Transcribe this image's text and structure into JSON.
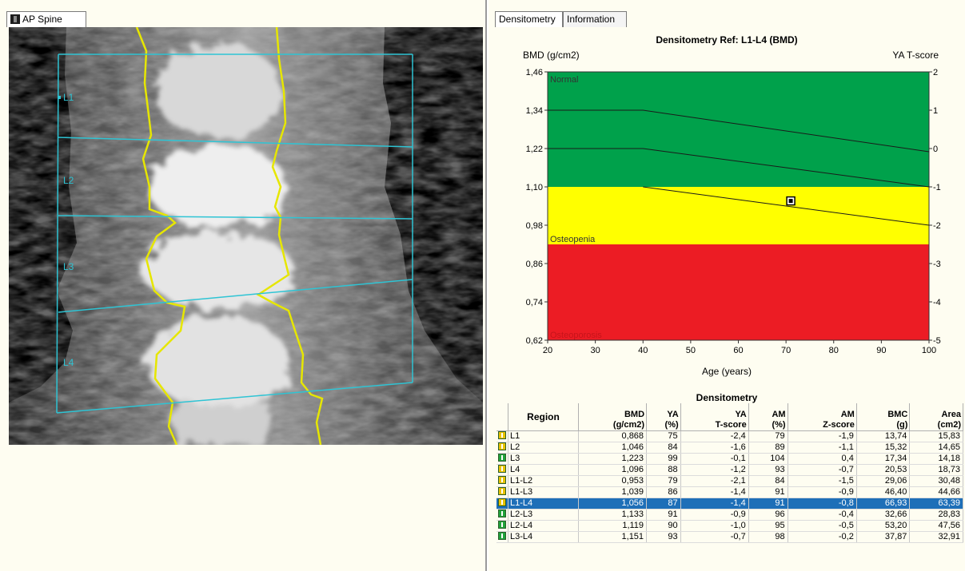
{
  "left": {
    "tab_label": "AP Spine",
    "vertebra_labels": [
      "L1",
      "L2",
      "L3",
      "L4"
    ]
  },
  "right": {
    "tabs": [
      "Densitometry",
      "Information"
    ],
    "chart_title": "Densitometry Ref: L1-L4 (BMD)",
    "y_title_left": "BMD (g/cm2)",
    "y_title_right": "YA T-score",
    "x_title": "Age (years)",
    "zone_labels": [
      "Normal",
      "Osteopenia",
      "Osteoporosis"
    ],
    "table_title": "Densitometry"
  },
  "colors": {
    "normal": "#00a14b",
    "osteopenia": "#ffff00",
    "osteoporosis": "#ec1c24",
    "roi_line": "#2ec4d4",
    "bone_edge": "#e6e600",
    "selected_row": "#1e6fb8"
  },
  "chart_data": {
    "type": "line",
    "title": "Densitometry Ref: L1-L4 (BMD)",
    "xlabel": "Age (years)",
    "ylabel": "BMD (g/cm2)",
    "y2label": "YA T-score",
    "xlim": [
      20,
      100
    ],
    "ylim": [
      0.62,
      1.46
    ],
    "x_ticks": [
      "20",
      "30",
      "40",
      "50",
      "60",
      "70",
      "80",
      "90",
      "100"
    ],
    "y_ticks": [
      "0,62",
      "0,74",
      "0,86",
      "0,98",
      "1,10",
      "1,22",
      "1,34",
      "1,46"
    ],
    "y2_ticks": [
      "-5",
      "-4",
      "-3",
      "-2",
      "-1",
      "0",
      "1",
      "2"
    ],
    "zones": [
      {
        "name": "Normal",
        "from": 1.1,
        "to": 1.46
      },
      {
        "name": "Osteopenia",
        "from": 0.92,
        "to": 1.1
      },
      {
        "name": "Osteoporosis",
        "from": 0.62,
        "to": 0.92
      }
    ],
    "reference_lines": [
      {
        "x": [
          20,
          40,
          100
        ],
        "y": [
          1.34,
          1.34,
          1.21
        ]
      },
      {
        "x": [
          20,
          40,
          100
        ],
        "y": [
          1.22,
          1.22,
          1.1
        ]
      },
      {
        "x": [
          40,
          100
        ],
        "y": [
          1.1,
          0.98
        ]
      }
    ],
    "patient_point": {
      "x": 71,
      "y": 1.056
    }
  },
  "table": {
    "headers": [
      {
        "line1": "",
        "line2": "Region"
      },
      {
        "line1": "BMD",
        "line2": "(g/cm2)"
      },
      {
        "line1": "YA",
        "line2": "(%)"
      },
      {
        "line1": "YA",
        "line2": "T-score"
      },
      {
        "line1": "AM",
        "line2": "(%)"
      },
      {
        "line1": "AM",
        "line2": "Z-score"
      },
      {
        "line1": "BMC",
        "line2": "(g)"
      },
      {
        "line1": "Area",
        "line2": "(cm2)"
      }
    ],
    "rows": [
      {
        "icon_color": "#e8c200",
        "cells": [
          "L1",
          "0,868",
          "75",
          "-2,4",
          "79",
          "-1,9",
          "13,74",
          "15,83"
        ]
      },
      {
        "icon_color": "#e8c200",
        "cells": [
          "L2",
          "1,046",
          "84",
          "-1,6",
          "89",
          "-1,1",
          "15,32",
          "14,65"
        ]
      },
      {
        "icon_color": "#1fa33a",
        "cells": [
          "L3",
          "1,223",
          "99",
          "-0,1",
          "104",
          "0,4",
          "17,34",
          "14,18"
        ]
      },
      {
        "icon_color": "#e8c200",
        "cells": [
          "L4",
          "1,096",
          "88",
          "-1,2",
          "93",
          "-0,7",
          "20,53",
          "18,73"
        ]
      },
      {
        "icon_color": "#e8c200",
        "cells": [
          "L1-L2",
          "0,953",
          "79",
          "-2,1",
          "84",
          "-1,5",
          "29,06",
          "30,48"
        ]
      },
      {
        "icon_color": "#e8c200",
        "cells": [
          "L1-L3",
          "1,039",
          "86",
          "-1,4",
          "91",
          "-0,9",
          "46,40",
          "44,66"
        ]
      },
      {
        "icon_color": "#e8c200",
        "selected": true,
        "cells": [
          "L1-L4",
          "1,056",
          "87",
          "-1,4",
          "91",
          "-0,8",
          "66,93",
          "63,39"
        ]
      },
      {
        "icon_color": "#1fa33a",
        "cells": [
          "L2-L3",
          "1,133",
          "91",
          "-0,9",
          "96",
          "-0,4",
          "32,66",
          "28,83"
        ]
      },
      {
        "icon_color": "#1fa33a",
        "cells": [
          "L2-L4",
          "1,119",
          "90",
          "-1,0",
          "95",
          "-0,5",
          "53,20",
          "47,56"
        ]
      },
      {
        "icon_color": "#1fa33a",
        "cells": [
          "L3-L4",
          "1,151",
          "93",
          "-0,7",
          "98",
          "-0,2",
          "37,87",
          "32,91"
        ]
      }
    ]
  }
}
